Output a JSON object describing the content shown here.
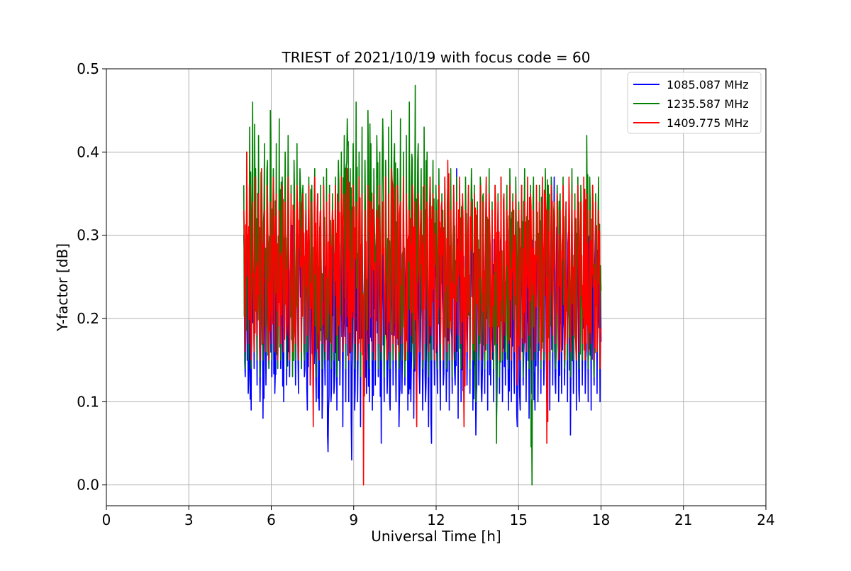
{
  "chart_data": {
    "type": "line",
    "title": "TRIEST of 2021/10/19 with focus code = 60",
    "xlabel": "Universal Time [h]",
    "ylabel": "Y-factor [dB]",
    "xlim": [
      0,
      24
    ],
    "ylim": [
      -0.025,
      0.5
    ],
    "xticks": [
      0,
      3,
      6,
      9,
      12,
      15,
      18,
      21,
      24
    ],
    "xtick_labels": [
      "0",
      "3",
      "6",
      "9",
      "12",
      "15",
      "18",
      "21",
      "24"
    ],
    "yticks": [
      0.0,
      0.1,
      0.2,
      0.3,
      0.4,
      0.5
    ],
    "ytick_labels": [
      "0.0",
      "0.1",
      "0.2",
      "0.3",
      "0.4",
      "0.5"
    ],
    "grid": true,
    "legend_position": "top-right",
    "series": [
      {
        "name": "1085.087 MHz",
        "color": "#0000ff",
        "x_range": [
          5.0,
          18.0
        ],
        "band_low": [
          0.13,
          0.11,
          0.09,
          0.14,
          0.12,
          0.1,
          0.08,
          0.12,
          0.14,
          0.13,
          0.11,
          0.15,
          0.14,
          0.1,
          0.12,
          0.13,
          0.15,
          0.12,
          0.11,
          0.14,
          0.13,
          0.09,
          0.12,
          0.11,
          0.1,
          0.09,
          0.08,
          0.12,
          0.04,
          0.1,
          0.11,
          0.09,
          0.12,
          0.07,
          0.1,
          0.1,
          0.03,
          0.09,
          0.1,
          0.07,
          0.12,
          0.11,
          0.1,
          0.09,
          0.12,
          0.13,
          0.05,
          0.1,
          0.11,
          0.09,
          0.12,
          0.1,
          0.07,
          0.11,
          0.12,
          0.09,
          0.1,
          0.08,
          0.12,
          0.11,
          0.09,
          0.1,
          0.07,
          0.05,
          0.12,
          0.11,
          0.09,
          0.12,
          0.1,
          0.09,
          0.11,
          0.12,
          0.08,
          0.1,
          0.1,
          0.12,
          0.11,
          0.09,
          0.06,
          0.12,
          0.1,
          0.11,
          0.09,
          0.12,
          0.1,
          0.08,
          0.11,
          0.1,
          0.12,
          0.09,
          0.1,
          0.11,
          0.07,
          0.09,
          0.12,
          0.1,
          0.08,
          0.11,
          0.09,
          0.1,
          0.11,
          0.12,
          0.1,
          0.09,
          0.12,
          0.11,
          0.1,
          0.11,
          0.12,
          0.1,
          0.06,
          0.11,
          0.09,
          0.1,
          0.12,
          0.11,
          0.1,
          0.09,
          0.12,
          0.11,
          0.1
        ],
        "band_high": [
          0.3,
          0.31,
          0.33,
          0.3,
          0.32,
          0.34,
          0.3,
          0.32,
          0.33,
          0.31,
          0.3,
          0.32,
          0.34,
          0.31,
          0.32,
          0.3,
          0.33,
          0.31,
          0.32,
          0.3,
          0.31,
          0.33,
          0.3,
          0.32,
          0.34,
          0.31,
          0.3,
          0.32,
          0.33,
          0.3,
          0.31,
          0.32,
          0.34,
          0.3,
          0.31,
          0.33,
          0.32,
          0.3,
          0.31,
          0.33,
          0.32,
          0.3,
          0.31,
          0.33,
          0.3,
          0.32,
          0.31,
          0.33,
          0.3,
          0.32,
          0.31,
          0.3,
          0.33,
          0.32,
          0.31,
          0.3,
          0.32,
          0.34,
          0.31,
          0.3,
          0.32,
          0.33,
          0.31,
          0.3,
          0.32,
          0.31,
          0.33,
          0.3,
          0.32,
          0.31,
          0.3,
          0.33,
          0.38,
          0.31,
          0.32,
          0.3,
          0.33,
          0.31,
          0.32,
          0.3,
          0.31,
          0.33,
          0.32,
          0.3,
          0.31,
          0.32,
          0.33,
          0.3,
          0.31,
          0.32,
          0.33,
          0.3,
          0.32,
          0.31,
          0.3,
          0.33,
          0.31,
          0.32,
          0.3,
          0.31,
          0.33,
          0.3,
          0.32,
          0.31,
          0.33,
          0.37,
          0.3,
          0.31,
          0.32,
          0.33,
          0.3,
          0.31,
          0.33,
          0.3,
          0.32,
          0.31,
          0.33,
          0.3,
          0.31,
          0.32,
          0.3
        ]
      },
      {
        "name": "1235.587 MHz",
        "color": "#008000",
        "x_range": [
          5.0,
          18.0
        ],
        "band_low": [
          0.14,
          0.15,
          0.14,
          0.16,
          0.15,
          0.13,
          0.15,
          0.16,
          0.14,
          0.15,
          0.16,
          0.14,
          0.15,
          0.16,
          0.14,
          0.15,
          0.13,
          0.15,
          0.16,
          0.14,
          0.15,
          0.16,
          0.14,
          0.15,
          0.13,
          0.16,
          0.14,
          0.15,
          0.16,
          0.14,
          0.15,
          0.13,
          0.15,
          0.16,
          0.14,
          0.15,
          0.16,
          0.14,
          0.15,
          0.13,
          0.15,
          0.16,
          0.14,
          0.15,
          0.16,
          0.14,
          0.15,
          0.13,
          0.16,
          0.14,
          0.15,
          0.16,
          0.14,
          0.15,
          0.13,
          0.15,
          0.16,
          0.14,
          0.15,
          0.16,
          0.14,
          0.15,
          0.13,
          0.15,
          0.16,
          0.14,
          0.15,
          0.16,
          0.14,
          0.15,
          0.13,
          0.15,
          0.16,
          0.14,
          0.15,
          0.16,
          0.14,
          0.15,
          0.1,
          0.15,
          0.16,
          0.14,
          0.15,
          0.16,
          0.14,
          0.05,
          0.13,
          0.15,
          0.16,
          0.14,
          0.15,
          0.16,
          0.14,
          0.15,
          0.13,
          0.16,
          0.14,
          0.0,
          0.15,
          0.16,
          0.14,
          0.15,
          0.13,
          0.15,
          0.16,
          0.14,
          0.15,
          0.16,
          0.14,
          0.15,
          0.13,
          0.15,
          0.16,
          0.14,
          0.15,
          0.16,
          0.14,
          0.15,
          0.13,
          0.16,
          0.14
        ],
        "band_high": [
          0.36,
          0.4,
          0.43,
          0.46,
          0.38,
          0.42,
          0.37,
          0.41,
          0.39,
          0.45,
          0.38,
          0.41,
          0.44,
          0.37,
          0.4,
          0.42,
          0.36,
          0.39,
          0.41,
          0.38,
          0.36,
          0.35,
          0.37,
          0.36,
          0.38,
          0.35,
          0.36,
          0.37,
          0.38,
          0.36,
          0.35,
          0.37,
          0.39,
          0.4,
          0.42,
          0.44,
          0.38,
          0.41,
          0.46,
          0.4,
          0.43,
          0.39,
          0.45,
          0.41,
          0.38,
          0.42,
          0.4,
          0.44,
          0.39,
          0.43,
          0.45,
          0.41,
          0.38,
          0.44,
          0.4,
          0.42,
          0.46,
          0.39,
          0.48,
          0.41,
          0.38,
          0.43,
          0.4,
          0.37,
          0.39,
          0.36,
          0.38,
          0.35,
          0.37,
          0.36,
          0.38,
          0.35,
          0.37,
          0.36,
          0.34,
          0.37,
          0.35,
          0.38,
          0.36,
          0.34,
          0.37,
          0.35,
          0.36,
          0.38,
          0.34,
          0.36,
          0.35,
          0.37,
          0.34,
          0.36,
          0.38,
          0.35,
          0.37,
          0.34,
          0.36,
          0.38,
          0.35,
          0.36,
          0.37,
          0.34,
          0.36,
          0.35,
          0.38,
          0.36,
          0.37,
          0.34,
          0.36,
          0.35,
          0.37,
          0.34,
          0.36,
          0.38,
          0.35,
          0.37,
          0.36,
          0.34,
          0.42,
          0.37,
          0.36,
          0.35,
          0.37
        ]
      },
      {
        "name": "1409.775 MHz",
        "color": "#ff0000",
        "x_range": [
          5.0,
          18.0
        ],
        "band_low": [
          0.16,
          0.17,
          0.15,
          0.16,
          0.18,
          0.15,
          0.17,
          0.16,
          0.15,
          0.17,
          0.16,
          0.15,
          0.17,
          0.16,
          0.18,
          0.15,
          0.16,
          0.17,
          0.15,
          0.16,
          0.17,
          0.18,
          0.12,
          0.07,
          0.16,
          0.15,
          0.17,
          0.16,
          0.15,
          0.17,
          0.16,
          0.18,
          0.15,
          0.16,
          0.17,
          0.15,
          0.16,
          0.17,
          0.15,
          0.16,
          0.0,
          0.15,
          0.17,
          0.16,
          0.15,
          0.17,
          0.16,
          0.18,
          0.15,
          0.16,
          0.17,
          0.15,
          0.16,
          0.17,
          0.15,
          0.16,
          0.18,
          0.17,
          0.07,
          0.16,
          0.15,
          0.17,
          0.16,
          0.18,
          0.15,
          0.16,
          0.17,
          0.15,
          0.16,
          0.17,
          0.15,
          0.16,
          0.18,
          0.17,
          0.07,
          0.16,
          0.15,
          0.17,
          0.16,
          0.18,
          0.15,
          0.16,
          0.17,
          0.15,
          0.16,
          0.17,
          0.15,
          0.16,
          0.18,
          0.17,
          0.15,
          0.16,
          0.12,
          0.15,
          0.17,
          0.16,
          0.18,
          0.15,
          0.16,
          0.17,
          0.15,
          0.16,
          0.05,
          0.16,
          0.18,
          0.17,
          0.15,
          0.16,
          0.15,
          0.17,
          0.16,
          0.18,
          0.15,
          0.16,
          0.17,
          0.15,
          0.16,
          0.17,
          0.15,
          0.16,
          0.14
        ],
        "band_high": [
          0.33,
          0.4,
          0.36,
          0.34,
          0.37,
          0.35,
          0.38,
          0.33,
          0.36,
          0.34,
          0.37,
          0.35,
          0.33,
          0.36,
          0.34,
          0.37,
          0.35,
          0.33,
          0.36,
          0.34,
          0.35,
          0.33,
          0.36,
          0.34,
          0.37,
          0.35,
          0.33,
          0.36,
          0.34,
          0.35,
          0.33,
          0.36,
          0.34,
          0.37,
          0.35,
          0.38,
          0.33,
          0.36,
          0.34,
          0.37,
          0.35,
          0.33,
          0.36,
          0.34,
          0.35,
          0.33,
          0.36,
          0.34,
          0.37,
          0.35,
          0.38,
          0.33,
          0.36,
          0.34,
          0.37,
          0.35,
          0.33,
          0.36,
          0.34,
          0.35,
          0.33,
          0.36,
          0.34,
          0.37,
          0.35,
          0.33,
          0.36,
          0.34,
          0.37,
          0.39,
          0.33,
          0.36,
          0.34,
          0.37,
          0.35,
          0.33,
          0.36,
          0.34,
          0.35,
          0.33,
          0.36,
          0.34,
          0.37,
          0.35,
          0.33,
          0.36,
          0.34,
          0.37,
          0.35,
          0.33,
          0.36,
          0.34,
          0.35,
          0.33,
          0.36,
          0.34,
          0.37,
          0.35,
          0.33,
          0.36,
          0.34,
          0.37,
          0.35,
          0.33,
          0.36,
          0.34,
          0.35,
          0.33,
          0.36,
          0.34,
          0.37,
          0.35,
          0.33,
          0.36,
          0.34,
          0.37,
          0.35,
          0.33,
          0.36,
          0.34,
          0.33
        ]
      }
    ]
  }
}
